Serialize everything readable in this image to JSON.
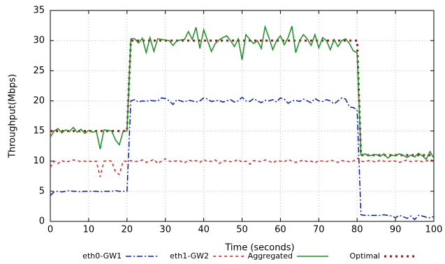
{
  "chart_data": {
    "type": "line",
    "xlabel": "Time (seconds)",
    "ylabel": "Throughput(Mbps)",
    "x": [
      0,
      1,
      2,
      3,
      4,
      5,
      6,
      7,
      8,
      9,
      10,
      11,
      12,
      13,
      14,
      15,
      16,
      17,
      18,
      19,
      20,
      21,
      22,
      23,
      24,
      25,
      26,
      27,
      28,
      29,
      30,
      31,
      32,
      33,
      34,
      35,
      36,
      37,
      38,
      39,
      40,
      41,
      42,
      43,
      44,
      45,
      46,
      47,
      48,
      49,
      50,
      51,
      52,
      53,
      54,
      55,
      56,
      57,
      58,
      59,
      60,
      61,
      62,
      63,
      64,
      65,
      66,
      67,
      68,
      69,
      70,
      71,
      72,
      73,
      74,
      75,
      76,
      77,
      78,
      79,
      80,
      81,
      82,
      83,
      84,
      85,
      86,
      87,
      88,
      89,
      90,
      91,
      92,
      93,
      94,
      95,
      96,
      97,
      98,
      99,
      100
    ],
    "series": [
      {
        "name": "eth0-GW1",
        "color": "#0019c8",
        "style": "dash-dot",
        "values": [
          4.3,
          4.9,
          5.0,
          4.9,
          5.0,
          5.1,
          5.0,
          5.0,
          4.9,
          5.0,
          5.0,
          5.0,
          5.0,
          4.9,
          5.0,
          5.0,
          5.0,
          5.1,
          5.0,
          5.0,
          5.0,
          20.0,
          20.2,
          19.8,
          20.0,
          19.9,
          20.1,
          20.0,
          20.0,
          20.5,
          20.4,
          20.0,
          19.4,
          20.2,
          20.0,
          19.8,
          20.1,
          20.0,
          19.8,
          20.0,
          20.5,
          20.3,
          19.9,
          20.0,
          20.1,
          19.8,
          20.0,
          20.2,
          19.8,
          20.0,
          20.6,
          20.0,
          19.9,
          20.4,
          20.0,
          19.7,
          20.1,
          20.0,
          20.2,
          19.8,
          20.5,
          20.3,
          19.6,
          20.0,
          20.1,
          19.9,
          20.3,
          20.0,
          19.7,
          20.4,
          20.0,
          19.9,
          20.2,
          20.0,
          19.5,
          20.0,
          20.5,
          20.3,
          19.0,
          18.9,
          18.5,
          1.1,
          1.0,
          1.0,
          1.0,
          1.0,
          1.0,
          1.1,
          1.0,
          0.9,
          0.6,
          1.0,
          0.8,
          0.5,
          0.9,
          0.3,
          1.0,
          0.9,
          0.7,
          0.6,
          0.8
        ]
      },
      {
        "name": "eth1-GW2",
        "color": "#e41a1c",
        "style": "dash",
        "values": [
          9.0,
          10.0,
          9.6,
          10.1,
          9.8,
          10.0,
          10.2,
          10.1,
          9.9,
          10.0,
          10.0,
          9.9,
          10.0,
          7.4,
          10.0,
          10.1,
          10.0,
          8.2,
          7.8,
          10.0,
          10.0,
          10.1,
          9.9,
          10.0,
          10.2,
          9.8,
          10.0,
          10.3,
          9.6,
          10.0,
          10.4,
          10.0,
          9.9,
          10.1,
          10.0,
          9.7,
          10.2,
          10.0,
          10.1,
          9.8,
          10.3,
          9.9,
          10.0,
          10.2,
          9.6,
          10.0,
          10.1,
          9.9,
          10.0,
          10.3,
          9.8,
          10.0,
          9.5,
          10.1,
          10.0,
          9.9,
          10.2,
          10.0,
          9.7,
          10.1,
          10.0,
          9.9,
          10.3,
          10.0,
          9.8,
          10.0,
          10.2,
          9.9,
          10.0,
          9.7,
          10.1,
          10.0,
          9.9,
          10.2,
          10.0,
          9.8,
          10.1,
          10.0,
          9.9,
          10.0,
          10.5,
          10.0,
          9.9,
          10.1,
          10.0,
          9.8,
          10.2,
          10.0,
          9.9,
          10.1,
          10.0,
          9.8,
          10.0,
          10.2,
          9.9,
          10.0,
          10.1,
          9.9,
          10.0,
          10.3,
          10.0
        ]
      },
      {
        "name": "Aggregated",
        "color": "#14901c",
        "style": "solid",
        "values": [
          14.0,
          15.0,
          15.4,
          14.7,
          15.2,
          14.9,
          15.6,
          14.8,
          15.3,
          14.6,
          15.1,
          14.8,
          15.0,
          12.0,
          15.2,
          15.1,
          15.0,
          13.5,
          12.7,
          15.0,
          15.0,
          30.3,
          30.3,
          29.6,
          30.4,
          28.0,
          30.5,
          28.2,
          30.3,
          30.2,
          30.1,
          30.0,
          29.2,
          30.0,
          30.1,
          30.2,
          31.5,
          30.2,
          32.2,
          28.7,
          31.8,
          30.0,
          28.2,
          29.5,
          30.1,
          30.5,
          30.8,
          30.0,
          29.0,
          30.3,
          26.8,
          31.0,
          30.2,
          29.5,
          30.0,
          28.7,
          32.3,
          30.5,
          28.5,
          30.0,
          30.8,
          29.3,
          30.5,
          32.4,
          28.0,
          30.0,
          31.0,
          30.3,
          29.2,
          31.0,
          28.8,
          30.5,
          30.0,
          28.5,
          30.2,
          29.0,
          30.0,
          30.3,
          29.5,
          28.3,
          28.0,
          11.0,
          11.2,
          10.9,
          11.0,
          11.1,
          10.8,
          11.2,
          10.5,
          11.0,
          10.9,
          11.2,
          11.0,
          10.6,
          11.0,
          10.7,
          11.3,
          10.9,
          10.3,
          11.6,
          10.5
        ]
      },
      {
        "name": "Optimal",
        "color": "#8b1e1e",
        "style": "dot",
        "values": [
          15,
          15,
          15,
          15,
          15,
          15,
          15,
          15,
          15,
          15,
          15,
          15,
          15,
          15,
          15,
          15,
          15,
          15,
          15,
          15,
          15,
          30,
          30,
          30,
          30,
          30,
          30,
          30,
          30,
          30,
          30,
          30,
          30,
          30,
          30,
          30,
          30,
          30,
          30,
          30,
          30,
          30,
          30,
          30,
          30,
          30,
          30,
          30,
          30,
          30,
          30,
          30,
          30,
          30,
          30,
          30,
          30,
          30,
          30,
          30,
          30,
          30,
          30,
          30,
          30,
          30,
          30,
          30,
          30,
          30,
          30,
          30,
          30,
          30,
          30,
          30,
          30,
          30,
          30,
          30,
          30,
          11,
          11,
          11,
          11,
          11,
          11,
          11,
          11,
          11,
          11,
          11,
          11,
          11,
          11,
          11,
          11,
          11,
          11,
          11,
          11
        ]
      }
    ],
    "xlim": [
      0,
      100
    ],
    "xticks": [
      0,
      10,
      20,
      30,
      40,
      50,
      60,
      70,
      80,
      90,
      100
    ],
    "ylim": [
      0,
      35
    ],
    "yticks": [
      0,
      5,
      10,
      15,
      20,
      25,
      30,
      35
    ],
    "grid": true,
    "legend": "bottom"
  }
}
